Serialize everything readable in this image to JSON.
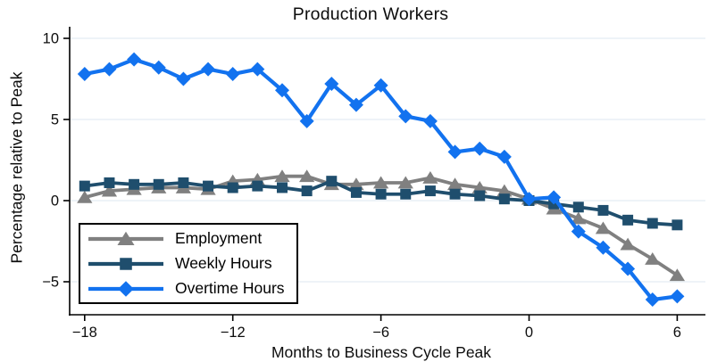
{
  "title": "Production Workers",
  "x_axis": {
    "title": "Months to Business Cycle Peak",
    "tick_values": [
      -18,
      -12,
      -6,
      0,
      6
    ],
    "tick_labels": [
      "−18",
      "−12",
      "−6",
      "0",
      "6"
    ]
  },
  "y_axis": {
    "title": "Percentage relative to Peak",
    "tick_values": [
      10,
      5,
      0,
      -5
    ],
    "tick_labels": [
      "10",
      "5",
      "0",
      "−5"
    ]
  },
  "legend": {
    "position": "lower-left",
    "entries": [
      {
        "label": "Employment",
        "marker": "triangle",
        "color": "#808080"
      },
      {
        "label": "Weekly Hours",
        "marker": "square",
        "color": "#1f4e6d"
      },
      {
        "label": "Overtime Hours",
        "marker": "diamond",
        "color": "#1272ef"
      }
    ]
  },
  "colors": {
    "background": "#ffffff",
    "grid": "#e4ecf3",
    "axis": "#000000",
    "employment": "#808080",
    "weekly_hours": "#1f4e6d",
    "overtime_hours": "#1272ef"
  },
  "chart_data": {
    "type": "line",
    "title": "Production Workers",
    "xlabel": "Months to Business Cycle Peak",
    "ylabel": "Percentage relative to Peak",
    "x": [
      -18,
      -17,
      -16,
      -15,
      -14,
      -13,
      -12,
      -11,
      -10,
      -9,
      -8,
      -7,
      -6,
      -5,
      -4,
      -3,
      -2,
      -1,
      0,
      1,
      2,
      3,
      4,
      5,
      6
    ],
    "series": [
      {
        "name": "Employment",
        "marker": "triangle",
        "color": "#808080",
        "values": [
          0.2,
          0.6,
          0.7,
          0.8,
          0.8,
          0.7,
          1.2,
          1.3,
          1.5,
          1.5,
          1.0,
          1.0,
          1.1,
          1.1,
          1.4,
          1.0,
          0.8,
          0.6,
          0.1,
          -0.5,
          -1.1,
          -1.7,
          -2.7,
          -3.6,
          -4.6
        ]
      },
      {
        "name": "Weekly Hours",
        "marker": "square",
        "color": "#1f4e6d",
        "values": [
          0.9,
          1.1,
          1.0,
          1.0,
          1.1,
          0.9,
          0.8,
          0.9,
          0.8,
          0.6,
          1.2,
          0.5,
          0.4,
          0.4,
          0.6,
          0.4,
          0.3,
          0.1,
          0.0,
          -0.2,
          -0.4,
          -0.6,
          -1.2,
          -1.4,
          -1.5
        ]
      },
      {
        "name": "Overtime Hours",
        "marker": "diamond",
        "color": "#1272ef",
        "values": [
          7.8,
          8.1,
          8.7,
          8.2,
          7.5,
          8.1,
          7.8,
          8.1,
          6.8,
          4.9,
          7.2,
          5.9,
          7.1,
          5.2,
          4.9,
          3.0,
          3.2,
          2.7,
          0.1,
          0.2,
          -1.9,
          -2.9,
          -4.2,
          -6.1,
          -5.9
        ]
      }
    ],
    "xlim": [
      -19,
      7.3
    ],
    "ylim": [
      -7,
      10.7
    ],
    "xticks": [
      -18,
      -12,
      -6,
      0,
      6
    ],
    "yticks": [
      -5,
      0,
      5,
      10
    ],
    "grid": "horizontal",
    "legend_position": "lower-left"
  }
}
